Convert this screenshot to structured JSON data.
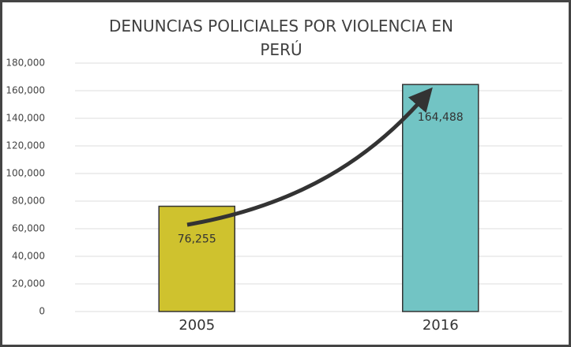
{
  "chart_data": {
    "type": "bar",
    "title": "DENUNCIAS POLICIALES POR VIOLENCIA EN PERÚ",
    "categories": [
      "2005",
      "2016"
    ],
    "values": [
      76255,
      164488
    ],
    "value_labels": [
      "76,255",
      "164,488"
    ],
    "colors": [
      "#cfc22e",
      "#72c4c4"
    ],
    "ylim": [
      0,
      180000
    ],
    "yticks": [
      0,
      {
        "value": 20000,
        "label": "20,000"
      },
      {
        "value": 40000,
        "label": "40,000"
      },
      {
        "value": 60000,
        "label": "60,000"
      },
      {
        "value": 80000,
        "label": "80,000"
      },
      {
        "value": 100000,
        "label": "100,000"
      },
      {
        "value": 120000,
        "label": "120,000"
      },
      {
        "value": 140000,
        "label": "140,000"
      },
      {
        "value": 160000,
        "label": "160,000"
      },
      {
        "value": 180000,
        "label": "180,000"
      }
    ],
    "grid": true
  }
}
